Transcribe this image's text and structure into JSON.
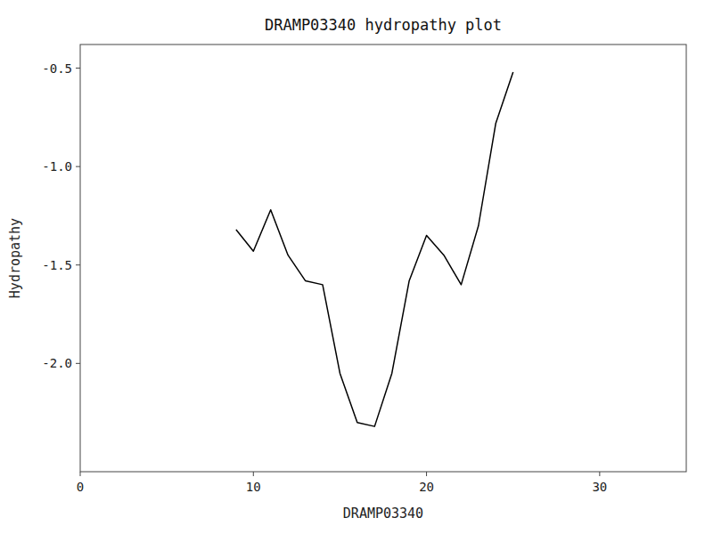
{
  "chart_data": {
    "type": "line",
    "title": "DRAMP03340 hydropathy plot",
    "xlabel": "DRAMP03340",
    "ylabel": "Hydropathy",
    "x": [
      9,
      10,
      11,
      12,
      13,
      14,
      15,
      16,
      17,
      18,
      19,
      20,
      21,
      22,
      23,
      24,
      25
    ],
    "values": [
      -1.32,
      -1.43,
      -1.22,
      -1.45,
      -1.58,
      -1.6,
      -2.05,
      -2.3,
      -2.32,
      -2.05,
      -1.58,
      -1.35,
      -1.45,
      -1.6,
      -1.3,
      -0.78,
      -0.52
    ],
    "color": "#000000",
    "xlim": [
      0,
      35
    ],
    "ylim": [
      -2.55,
      -0.38
    ],
    "xticks": [
      0,
      10,
      20,
      30
    ],
    "yticks": [
      {
        "value": -2.0,
        "label": "-2.0"
      },
      -1.5,
      {
        "value": -1.0,
        "label": "-1.0"
      },
      -0.5
    ],
    "grid": false
  }
}
